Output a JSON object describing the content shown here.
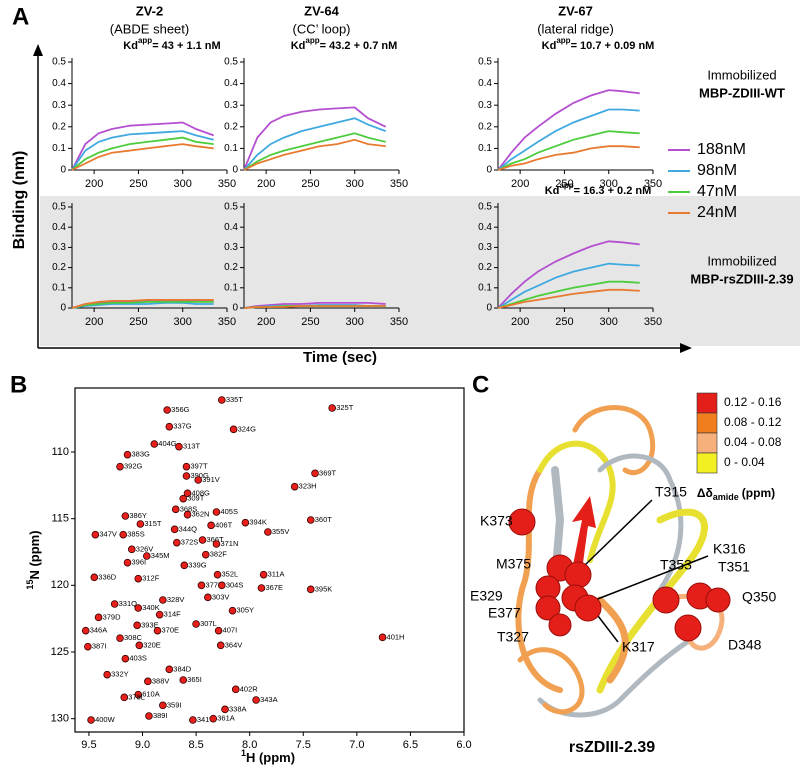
{
  "panel_labels": [
    "A",
    "B",
    "C"
  ],
  "chart_data": [
    {
      "type": "line-grid",
      "y_label": "Binding (nm)",
      "x_label": "Time (sec)",
      "columns": [
        {
          "title": "ZV-2",
          "subtitle": "(ABDE sheet)"
        },
        {
          "title": "ZV-64",
          "subtitle": "(CC’ loop)"
        },
        {
          "title": "ZV-67",
          "subtitle": "(lateral ridge)"
        }
      ],
      "rows": [
        {
          "title": "Immobilized",
          "name": "MBP-ZDIII-WT"
        },
        {
          "title": "Immobilized",
          "name": "MBP-rsZDIII-2.39"
        }
      ],
      "series": [
        {
          "name": "188nM",
          "color": "#b44fd0"
        },
        {
          "name": "98nM",
          "color": "#3fa9e0"
        },
        {
          "name": "47nM",
          "color": "#4ccc3c"
        },
        {
          "name": "24nM",
          "color": "#e87a30"
        }
      ],
      "x": [
        175,
        190,
        205,
        220,
        240,
        260,
        280,
        300,
        315,
        335
      ],
      "xlim": [
        175,
        350
      ],
      "xticks": [
        200,
        250,
        300,
        350
      ],
      "ylim": [
        0,
        0.5
      ],
      "yticks": [
        0,
        0.1,
        0.2,
        0.3,
        0.4,
        0.5
      ],
      "panels": [
        [
          {
            "annotation": {
              "text": "Kd",
              "sup": "app",
              "rest": "= 43 + 1.1 nM"
            },
            "values": [
              [
                0,
                0.12,
                0.17,
                0.19,
                0.205,
                0.21,
                0.215,
                0.22,
                0.19,
                0.16
              ],
              [
                0,
                0.09,
                0.13,
                0.15,
                0.165,
                0.17,
                0.175,
                0.18,
                0.16,
                0.14
              ],
              [
                0,
                0.05,
                0.08,
                0.1,
                0.12,
                0.13,
                0.14,
                0.15,
                0.13,
                0.12
              ],
              [
                0,
                0.03,
                0.06,
                0.08,
                0.09,
                0.1,
                0.11,
                0.12,
                0.11,
                0.1
              ]
            ]
          },
          {
            "annotation": {
              "text": "Kd",
              "sup": "app",
              "rest": "= 43.2 + 0.7 nM"
            },
            "values": [
              [
                0,
                0.15,
                0.22,
                0.25,
                0.27,
                0.28,
                0.285,
                0.29,
                0.24,
                0.2
              ],
              [
                0,
                0.07,
                0.12,
                0.15,
                0.18,
                0.2,
                0.22,
                0.24,
                0.21,
                0.18
              ],
              [
                0,
                0.04,
                0.07,
                0.09,
                0.11,
                0.13,
                0.15,
                0.17,
                0.15,
                0.13
              ],
              [
                0,
                0.03,
                0.05,
                0.07,
                0.09,
                0.11,
                0.12,
                0.14,
                0.12,
                0.11
              ]
            ]
          },
          {
            "annotation": {
              "text": "Kd",
              "sup": "app",
              "rest": "= 10.7 + 0.09 nM"
            },
            "values": [
              [
                0,
                0.08,
                0.15,
                0.2,
                0.26,
                0.31,
                0.345,
                0.37,
                0.365,
                0.355
              ],
              [
                0,
                0.05,
                0.09,
                0.13,
                0.18,
                0.22,
                0.25,
                0.28,
                0.28,
                0.275
              ],
              [
                0,
                0.03,
                0.05,
                0.08,
                0.11,
                0.14,
                0.16,
                0.18,
                0.175,
                0.17
              ],
              [
                0,
                0.02,
                0.03,
                0.05,
                0.07,
                0.08,
                0.1,
                0.11,
                0.11,
                0.105
              ]
            ]
          }
        ],
        [
          {
            "values": [
              [
                0,
                0.02,
                0.025,
                0.03,
                0.03,
                0.035,
                0.035,
                0.035,
                0.035,
                0.035
              ],
              [
                0,
                0.01,
                0.015,
                0.02,
                0.02,
                0.02,
                0.025,
                0.025,
                0.02,
                0.02
              ],
              [
                0,
                0.015,
                0.02,
                0.025,
                0.025,
                0.03,
                0.03,
                0.03,
                0.03,
                0.03
              ],
              [
                0,
                0.02,
                0.03,
                0.035,
                0.035,
                0.04,
                0.04,
                0.04,
                0.04,
                0.04
              ]
            ]
          },
          {
            "values": [
              [
                0,
                0.01,
                0.015,
                0.02,
                0.02,
                0.025,
                0.025,
                0.025,
                0.025,
                0.02
              ],
              [
                0,
                0.005,
                0.01,
                0.01,
                0.01,
                0.015,
                0.015,
                0.015,
                0.01,
                0.01
              ],
              [
                0,
                0.005,
                0.005,
                0.01,
                0.01,
                0.01,
                0.01,
                0.01,
                0.01,
                0.01
              ],
              [
                0,
                0.005,
                0.005,
                0.005,
                0.01,
                0.01,
                0.01,
                0.01,
                0.01,
                0.01
              ]
            ]
          },
          {
            "annotation": {
              "text": "Kd",
              "sup": "app",
              "rest": "= 16.3 + 0.2 nM"
            },
            "values": [
              [
                0,
                0.07,
                0.13,
                0.18,
                0.23,
                0.27,
                0.305,
                0.33,
                0.325,
                0.315
              ],
              [
                0,
                0.04,
                0.08,
                0.11,
                0.15,
                0.18,
                0.2,
                0.22,
                0.215,
                0.21
              ],
              [
                0,
                0.02,
                0.04,
                0.06,
                0.08,
                0.1,
                0.115,
                0.13,
                0.13,
                0.125
              ],
              [
                0,
                0.015,
                0.03,
                0.04,
                0.055,
                0.07,
                0.08,
                0.09,
                0.09,
                0.085
              ]
            ]
          }
        ]
      ]
    },
    {
      "type": "scatter",
      "x_label": {
        "sup": "1",
        "text": "H (ppm)"
      },
      "y_label": {
        "sup": "15",
        "text": "N (ppm)"
      },
      "color": "#e8201c",
      "xlim": [
        9.63,
        6.0
      ],
      "xticks": [
        9.5,
        {
          "value": 9,
          "label": "9.0"
        },
        8.5,
        {
          "value": 8,
          "label": "8.0"
        },
        7.5,
        {
          "value": 7,
          "label": "7.0"
        },
        6.5,
        {
          "value": 6,
          "label": "6.0"
        }
      ],
      "ylim": [
        131,
        105.2
      ],
      "yticks": [
        110,
        115,
        120,
        125,
        130
      ],
      "points": [
        {
          "x": 8.26,
          "y": 106.1,
          "label": "335T"
        },
        {
          "x": 7.23,
          "y": 106.7,
          "label": "325T"
        },
        {
          "x": 8.77,
          "y": 106.85,
          "label": "356G"
        },
        {
          "x": 8.75,
          "y": 108.1,
          "label": "337G"
        },
        {
          "x": 8.15,
          "y": 108.3,
          "label": "324G"
        },
        {
          "x": 8.89,
          "y": 109.4,
          "label": "404G"
        },
        {
          "x": 8.66,
          "y": 109.6,
          "label": "313T"
        },
        {
          "x": 9.14,
          "y": 110.2,
          "label": "383G"
        },
        {
          "x": 8.59,
          "y": 111.1,
          "label": "397T"
        },
        {
          "x": 8.59,
          "y": 111.8,
          "label": "390G"
        },
        {
          "x": 8.48,
          "y": 112.1,
          "label": "391V"
        },
        {
          "x": 9.21,
          "y": 111.1,
          "label": "392G"
        },
        {
          "x": 8.58,
          "y": 113.1,
          "label": "408G"
        },
        {
          "x": 7.58,
          "y": 112.6,
          "label": "323H"
        },
        {
          "x": 7.39,
          "y": 111.6,
          "label": "369T"
        },
        {
          "x": 9.16,
          "y": 114.8,
          "label": "386Y"
        },
        {
          "x": 8.62,
          "y": 113.5,
          "label": "309T"
        },
        {
          "x": 8.69,
          "y": 114.3,
          "label": "368S"
        },
        {
          "x": 8.58,
          "y": 114.7,
          "label": "362N"
        },
        {
          "x": 8.31,
          "y": 114.5,
          "label": "405S"
        },
        {
          "x": 9.02,
          "y": 115.4,
          "label": "315T"
        },
        {
          "x": 8.36,
          "y": 115.5,
          "label": "406T"
        },
        {
          "x": 8.04,
          "y": 115.3,
          "label": "394K"
        },
        {
          "x": 7.43,
          "y": 115.1,
          "label": "360T"
        },
        {
          "x": 9.44,
          "y": 116.2,
          "label": "347V"
        },
        {
          "x": 9.18,
          "y": 116.2,
          "label": "385S"
        },
        {
          "x": 8.7,
          "y": 115.8,
          "label": "344Q"
        },
        {
          "x": 8.68,
          "y": 116.8,
          "label": "372S"
        },
        {
          "x": 8.44,
          "y": 116.6,
          "label": "366T"
        },
        {
          "x": 7.83,
          "y": 116.0,
          "label": "355V"
        },
        {
          "x": 8.31,
          "y": 116.9,
          "label": "371N"
        },
        {
          "x": 9.1,
          "y": 117.3,
          "label": "326V"
        },
        {
          "x": 8.96,
          "y": 117.8,
          "label": "345M"
        },
        {
          "x": 8.41,
          "y": 117.7,
          "label": "382F"
        },
        {
          "x": 8.61,
          "y": 118.5,
          "label": "339G"
        },
        {
          "x": 9.14,
          "y": 118.3,
          "label": "396I"
        },
        {
          "x": 9.45,
          "y": 119.4,
          "label": "336D"
        },
        {
          "x": 9.04,
          "y": 119.5,
          "label": "312F"
        },
        {
          "x": 8.3,
          "y": 119.2,
          "label": "352L"
        },
        {
          "x": 8.45,
          "y": 120.0,
          "label": "377E"
        },
        {
          "x": 8.26,
          "y": 120.0,
          "label": "304S"
        },
        {
          "x": 7.87,
          "y": 119.2,
          "label": "311A"
        },
        {
          "x": 7.89,
          "y": 120.2,
          "label": "367E"
        },
        {
          "x": 7.43,
          "y": 120.3,
          "label": "395K"
        },
        {
          "x": 8.39,
          "y": 120.9,
          "label": "303V"
        },
        {
          "x": 9.26,
          "y": 121.4,
          "label": "331Q"
        },
        {
          "x": 9.04,
          "y": 121.7,
          "label": "340K"
        },
        {
          "x": 8.81,
          "y": 121.1,
          "label": "328V"
        },
        {
          "x": 8.16,
          "y": 121.9,
          "label": "305Y"
        },
        {
          "x": 9.41,
          "y": 122.4,
          "label": "379D"
        },
        {
          "x": 8.84,
          "y": 122.2,
          "label": "314F"
        },
        {
          "x": 8.5,
          "y": 122.9,
          "label": "307L"
        },
        {
          "x": 6.76,
          "y": 123.9,
          "label": "401H"
        },
        {
          "x": 9.53,
          "y": 123.4,
          "label": "346A"
        },
        {
          "x": 9.05,
          "y": 123.0,
          "label": "393E"
        },
        {
          "x": 8.86,
          "y": 123.4,
          "label": "370E"
        },
        {
          "x": 8.29,
          "y": 123.4,
          "label": "407I"
        },
        {
          "x": 9.21,
          "y": 123.96,
          "label": "308C"
        },
        {
          "x": 9.51,
          "y": 124.6,
          "label": "387I"
        },
        {
          "x": 9.03,
          "y": 124.5,
          "label": "320E"
        },
        {
          "x": 8.27,
          "y": 124.5,
          "label": "364V"
        },
        {
          "x": 9.16,
          "y": 125.5,
          "label": "403S"
        },
        {
          "x": 8.75,
          "y": 126.3,
          "label": "384D"
        },
        {
          "x": 9.33,
          "y": 126.7,
          "label": "332Y"
        },
        {
          "x": 8.62,
          "y": 127.1,
          "label": "365I"
        },
        {
          "x": 8.95,
          "y": 127.2,
          "label": "388V"
        },
        {
          "x": 9.04,
          "y": 128.2,
          "label": "610A"
        },
        {
          "x": 9.17,
          "y": 128.4,
          "label": "378L"
        },
        {
          "x": 8.81,
          "y": 129.0,
          "label": "359I"
        },
        {
          "x": 8.13,
          "y": 127.8,
          "label": "402R"
        },
        {
          "x": 7.94,
          "y": 128.6,
          "label": "343A"
        },
        {
          "x": 8.23,
          "y": 129.3,
          "label": "338A"
        },
        {
          "x": 8.94,
          "y": 129.8,
          "label": "389I"
        },
        {
          "x": 9.48,
          "y": 130.1,
          "label": "400W"
        },
        {
          "x": 8.53,
          "y": 130.1,
          "label": "341V"
        },
        {
          "x": 8.34,
          "y": 130.0,
          "label": "361A"
        }
      ]
    }
  ],
  "structure": {
    "title": "rsZDIII-2.39",
    "scale_label": {
      "text": "Δδ",
      "sub": "amide",
      "unit": "(ppm)"
    },
    "bins": [
      {
        "label": "0.12 - 0.16",
        "color": "#e41f1a"
      },
      {
        "label": "0.08 - 0.12",
        "color": "#f07d1e"
      },
      {
        "label": "0.04 - 0.08",
        "color": "#f6b07c"
      },
      {
        "label": "0 - 0.04",
        "color": "#f2ef22"
      }
    ],
    "residues": [
      "K373",
      "M375",
      "E329",
      "E377",
      "T327",
      "T315",
      "K316",
      "K317",
      "T353",
      "T351",
      "Q350",
      "D348"
    ]
  }
}
